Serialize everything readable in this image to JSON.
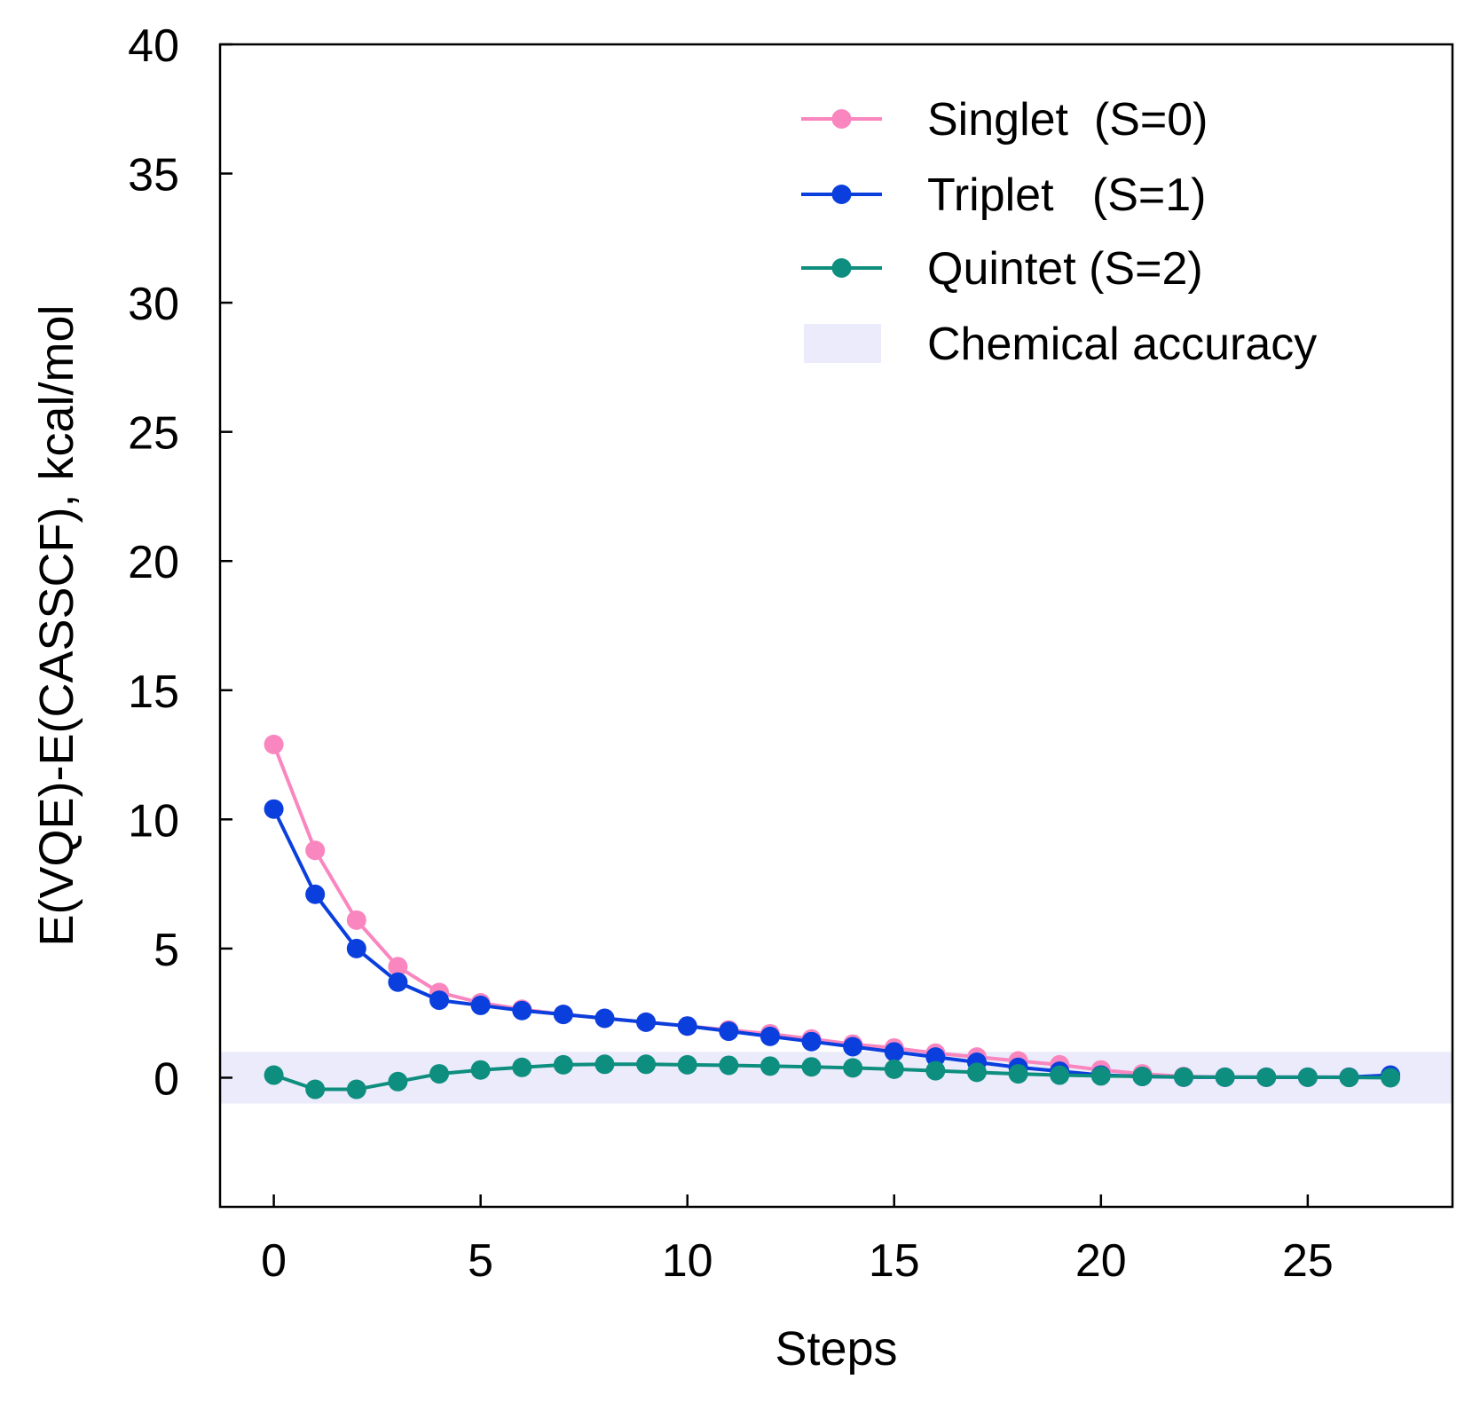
{
  "chart_data": {
    "type": "line",
    "title": "",
    "xlabel": "Steps",
    "ylabel": "E(VQE)-E(CASSCF), kcal/mol",
    "xlim": [
      -1.3,
      28.5
    ],
    "ylim": [
      -5,
      40
    ],
    "xticks": [
      0,
      5,
      10,
      15,
      20,
      25
    ],
    "yticks": [
      0,
      5,
      10,
      15,
      20,
      25,
      30,
      35,
      40
    ],
    "xtick_labels": [
      "0",
      "5",
      "10",
      "15",
      "20",
      "25"
    ],
    "ytick_labels": [
      "0",
      "5",
      "10",
      "15",
      "20",
      "25",
      "30",
      "35",
      "40"
    ],
    "grid": false,
    "legend_position": "top-right",
    "band": {
      "label": "Chemical accuracy",
      "y0": -1,
      "y1": 1,
      "color": "#ebebfb"
    },
    "x": [
      0,
      1,
      2,
      3,
      4,
      5,
      6,
      7,
      8,
      9,
      10,
      11,
      12,
      13,
      14,
      15,
      16,
      17,
      18,
      19,
      20,
      21,
      22,
      23,
      24,
      25,
      26,
      27
    ],
    "series": [
      {
        "name": "Singlet  (S=0)",
        "color": "#f986bf",
        "values": [
          12.9,
          8.8,
          6.1,
          4.3,
          3.3,
          2.9,
          2.65,
          2.45,
          2.3,
          2.15,
          2.0,
          1.85,
          1.7,
          1.5,
          1.3,
          1.15,
          0.95,
          0.8,
          0.65,
          0.5,
          0.3,
          0.15,
          0.05,
          0.02,
          0.02,
          0.02,
          0.02,
          0.05
        ]
      },
      {
        "name": "Triplet   (S=1)",
        "color": "#0a3fdd",
        "values": [
          10.4,
          7.1,
          5.0,
          3.7,
          3.0,
          2.8,
          2.6,
          2.45,
          2.3,
          2.15,
          2.0,
          1.8,
          1.6,
          1.4,
          1.2,
          1.0,
          0.8,
          0.6,
          0.4,
          0.25,
          0.1,
          0.05,
          0.02,
          0.02,
          0.02,
          0.02,
          0.02,
          0.1
        ]
      },
      {
        "name": "Quintet (S=2)",
        "color": "#0e8e7e",
        "values": [
          0.1,
          -0.45,
          -0.45,
          -0.15,
          0.15,
          0.3,
          0.4,
          0.5,
          0.52,
          0.52,
          0.5,
          0.48,
          0.45,
          0.42,
          0.38,
          0.33,
          0.27,
          0.21,
          0.15,
          0.1,
          0.07,
          0.05,
          0.03,
          0.02,
          0.02,
          0.02,
          0.01,
          0.0
        ]
      }
    ]
  }
}
